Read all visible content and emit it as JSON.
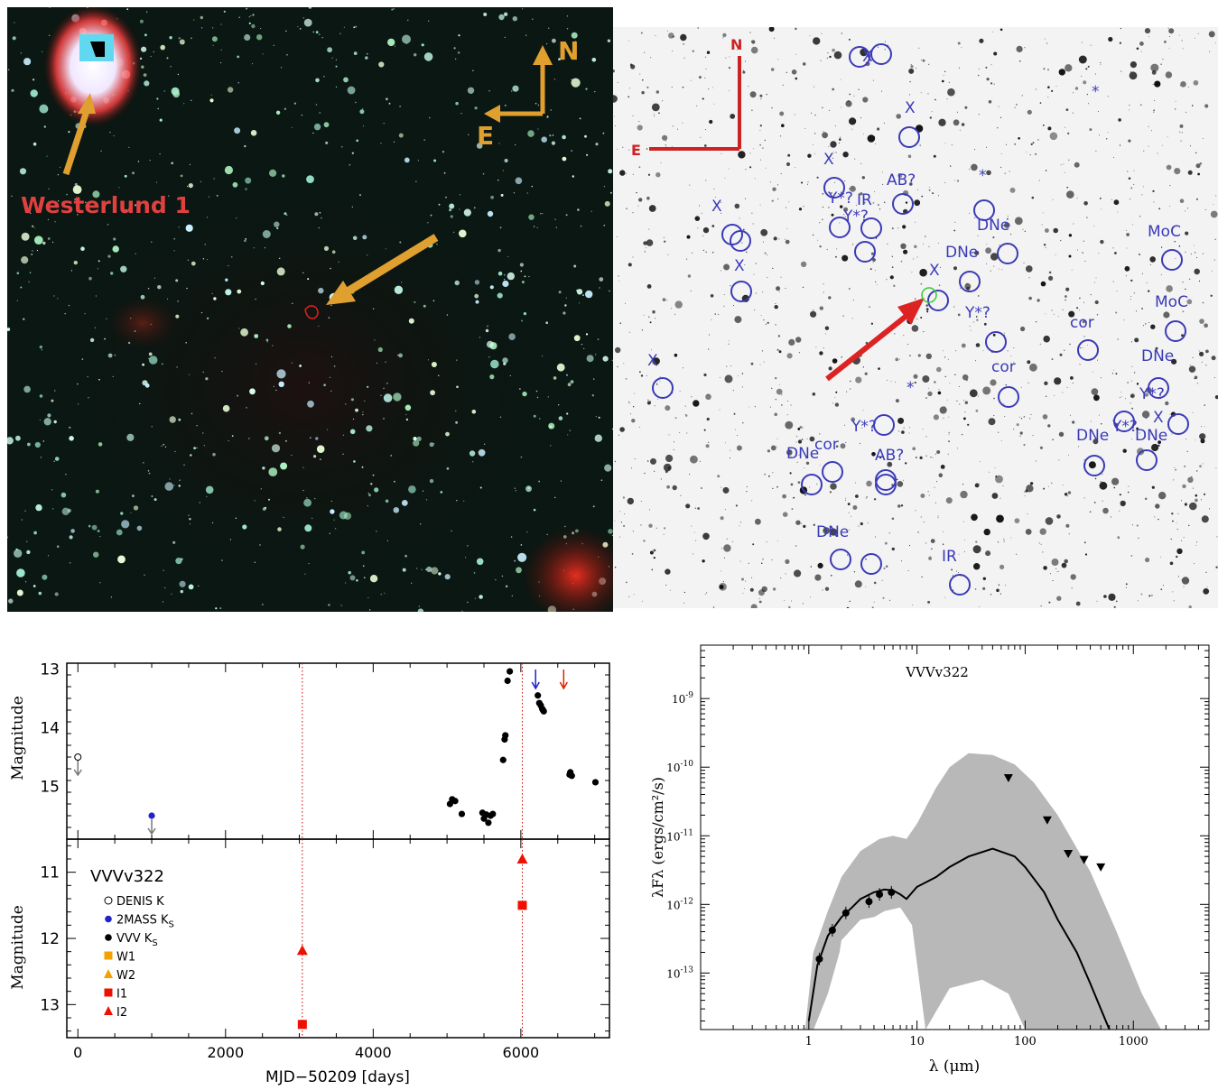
{
  "images": {
    "left": {
      "cluster_label": "Westerlund 1",
      "compass": {
        "north": "N",
        "east": "E"
      }
    },
    "right": {
      "compass": {
        "north": "N",
        "east": "E"
      },
      "labels": [
        "X",
        "X",
        "X",
        "X",
        "X",
        "Y*?",
        "Y*?",
        "Y*?",
        "Y*?",
        "Y*?",
        "Y*?",
        "IR",
        "IR",
        "DNe",
        "DNe",
        "DNe",
        "DNe",
        "DNe",
        "DNe",
        "DNe",
        "DNe+",
        "AB?",
        "AB?",
        "MoC",
        "MoC",
        "cor",
        "cor",
        "cor",
        "*",
        "*",
        "*"
      ]
    }
  },
  "chart_data": [
    {
      "type": "scatter",
      "ylabel": "Magnitude",
      "xlim": [
        -150,
        7200
      ],
      "ylim": [
        15.9,
        12.9
      ],
      "yticks": [
        13,
        14,
        15
      ],
      "vlines": [
        3040,
        6020
      ],
      "series": [
        {
          "name": "DENIS K",
          "marker": "open-circle",
          "color": "#000000",
          "x": [
            0
          ],
          "y": [
            14.5
          ],
          "upper_limit": true
        },
        {
          "name": "2MASS Ks",
          "marker": "circle",
          "color": "#2222cc",
          "x": [
            1000
          ],
          "y": [
            15.5
          ],
          "upper_limit": true
        },
        {
          "name": "VVV Ks",
          "marker": "circle",
          "color": "#000000",
          "x": [
            5040,
            5070,
            5110,
            5200,
            5480,
            5500,
            5530,
            5560,
            5590,
            5620,
            5760,
            5780,
            5790,
            5820,
            5850,
            6230,
            6250,
            6270,
            6290,
            6300,
            6310,
            6660,
            6670,
            6690,
            7010
          ],
          "y": [
            15.3,
            15.22,
            15.25,
            15.47,
            15.45,
            15.55,
            15.48,
            15.62,
            15.5,
            15.47,
            14.55,
            14.2,
            14.13,
            13.2,
            13.04,
            13.45,
            13.58,
            13.62,
            13.68,
            13.7,
            13.72,
            14.8,
            14.76,
            14.82,
            14.93
          ]
        }
      ],
      "arrows": [
        {
          "x": 6200,
          "color": "#2222cc"
        },
        {
          "x": 6580,
          "color": "#dd2200"
        }
      ]
    },
    {
      "type": "scatter",
      "xlabel": "MJD−50209 [days]",
      "ylabel": "Magnitude",
      "title": "VVVv322",
      "xlim": [
        -150,
        7200
      ],
      "ylim": [
        13.5,
        10.5
      ],
      "yticks": [
        11,
        12,
        13
      ],
      "xticks": [
        0,
        2000,
        4000,
        6000
      ],
      "vlines": [
        3040,
        6020
      ],
      "legend": [
        {
          "label": "DENIS K",
          "marker": "open-circle",
          "color": "#000000"
        },
        {
          "label": "2MASS K",
          "sub": "S",
          "marker": "circle",
          "color": "#2222cc"
        },
        {
          "label": "VVV K",
          "sub": "S",
          "marker": "circle",
          "color": "#000000"
        },
        {
          "label": "W1",
          "marker": "square",
          "color": "#f5a000"
        },
        {
          "label": "W2",
          "marker": "triangle",
          "color": "#f5a000"
        },
        {
          "label": "I1",
          "marker": "square",
          "color": "#ee1100"
        },
        {
          "label": "I2",
          "marker": "triangle",
          "color": "#ee1100"
        }
      ],
      "series": [
        {
          "name": "I1",
          "marker": "square",
          "color": "#ee1100",
          "x": [
            3040,
            6020
          ],
          "y": [
            13.3,
            11.5
          ]
        },
        {
          "name": "I2",
          "marker": "triangle",
          "color": "#ee1100",
          "x": [
            3040,
            6020
          ],
          "y": [
            12.18,
            10.8
          ]
        }
      ]
    },
    {
      "type": "line",
      "title": "VVVv322",
      "xlabel": "λ (μm)",
      "ylabel": "λFλ (ergs/cm²/s)",
      "xscale": "log",
      "yscale": "log",
      "xlim": [
        0.1,
        5000
      ],
      "ylim": [
        1.5e-14,
        6e-09
      ],
      "xticks": [
        1,
        10,
        100,
        1000
      ],
      "yticks": [
        "10^-9",
        "10^-10",
        "10^-11",
        "10^-12",
        "10^-13"
      ],
      "detections": {
        "x": [
          1.25,
          1.65,
          2.2,
          3.6,
          4.5,
          5.8
        ],
        "y": [
          1.6e-13,
          4.2e-13,
          7.5e-13,
          1.1e-12,
          1.4e-12,
          1.5e-12
        ]
      },
      "upper_limits": {
        "x": [
          70,
          160,
          250,
          350,
          500
        ],
        "y": [
          7e-11,
          1.7e-11,
          5.5e-12,
          4.5e-12,
          3.5e-12
        ]
      },
      "best_fit": {
        "x": [
          1.0,
          1.2,
          1.5,
          2.0,
          2.5,
          3,
          4,
          5,
          6,
          7,
          8,
          10,
          15,
          20,
          30,
          50,
          80,
          100,
          150,
          200,
          300,
          400,
          500,
          600
        ],
        "y": [
          2e-14,
          1.3e-13,
          3.5e-13,
          6.5e-13,
          9e-13,
          1.2e-12,
          1.5e-12,
          1.65e-12,
          1.6e-12,
          1.4e-12,
          1.2e-12,
          1.8e-12,
          2.5e-12,
          3.5e-12,
          5e-12,
          6.5e-12,
          5e-12,
          3.5e-12,
          1.5e-12,
          6e-13,
          2e-13,
          7e-14,
          3e-14,
          1.5e-14
        ]
      }
    }
  ]
}
